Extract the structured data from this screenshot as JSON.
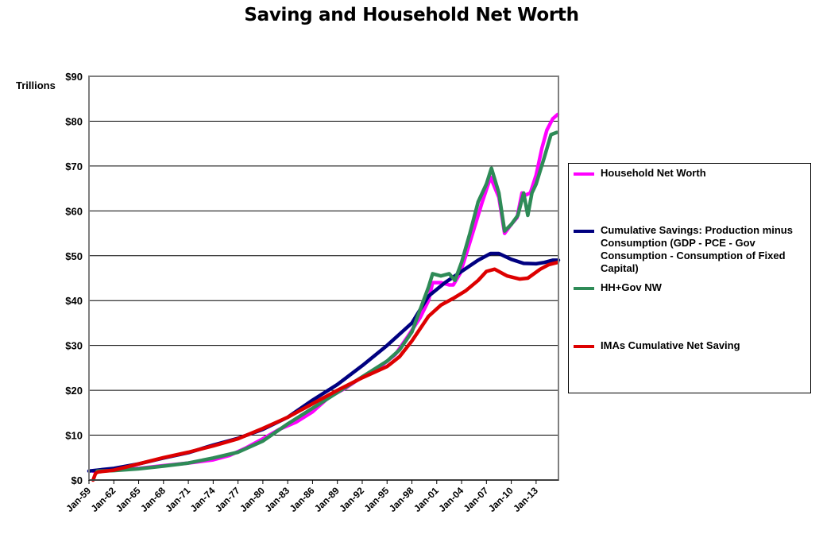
{
  "chart_data": {
    "type": "line",
    "title": "Saving and Household Net Worth",
    "ylabel": "Trillions",
    "xlabel": "",
    "ylim": [
      0,
      90
    ],
    "xlim": [
      1959,
      2015.7
    ],
    "y_tick_labels": [
      "$0",
      "$10",
      "$20",
      "$30",
      "$40",
      "$50",
      "$60",
      "$70",
      "$80",
      "$90"
    ],
    "y_tick_values": [
      0,
      10,
      20,
      30,
      40,
      50,
      60,
      70,
      80,
      90
    ],
    "x_tick_labels": [
      "Jan-59",
      "Jan-62",
      "Jan-65",
      "Jan-68",
      "Jan-71",
      "Jan-74",
      "Jan-77",
      "Jan-80",
      "Jan-83",
      "Jan-86",
      "Jan-89",
      "Jan-92",
      "Jan-95",
      "Jan-98",
      "Jan-01",
      "Jan-04",
      "Jan-07",
      "Jan-10",
      "Jan-13"
    ],
    "x_tick_values": [
      1959,
      1962,
      1965,
      1968,
      1971,
      1974,
      1977,
      1980,
      1983,
      1986,
      1989,
      1992,
      1995,
      1998,
      2001,
      2004,
      2007,
      2010,
      2013
    ],
    "grid": true,
    "legend_position": "right",
    "series": [
      {
        "name": "Household Net Worth",
        "color": "#ff00ff",
        "x": [
          1959.5,
          1962,
          1965,
          1968,
          1971,
          1974,
          1976,
          1978,
          1980,
          1982,
          1984,
          1986,
          1988,
          1990,
          1992,
          1994,
          1996,
          1997.5,
          1999,
          2000,
          2000.5,
          2001.5,
          2002.5,
          2003,
          2003.8,
          2004.5,
          2005.5,
          2006.5,
          2007.5,
          2008.5,
          2009.2,
          2010,
          2010.7,
          2011.3,
          2011.7,
          2012.3,
          2013,
          2013.7,
          2014.3,
          2015,
          2015.6
        ],
        "y": [
          2,
          2.2,
          2.6,
          3.2,
          3.8,
          4.5,
          5.5,
          7.2,
          9.2,
          11.3,
          12.9,
          15.2,
          18.5,
          20.5,
          23,
          25,
          28,
          32,
          36.2,
          40,
          44,
          44,
          43.5,
          43.5,
          46,
          50,
          56,
          62,
          67.5,
          63,
          55,
          57,
          58.5,
          64,
          63.5,
          64,
          68,
          74,
          78,
          80.5,
          81.5
        ]
      },
      {
        "name": "Cumulative Savings: Production minus Consumption (GDP - PCE - Gov Consumption - Consumption of Fixed Capital)",
        "color": "#000080",
        "x": [
          1959,
          1962,
          1965,
          1968,
          1971,
          1974,
          1977,
          1980,
          1983,
          1986,
          1989,
          1992,
          1995,
          1998,
          2000,
          2002,
          2004,
          2006,
          2007.5,
          2008.5,
          2010,
          2011.5,
          2013,
          2014,
          2015,
          2015.7
        ],
        "y": [
          2,
          2.6,
          3.6,
          4.9,
          6.1,
          7.8,
          9.3,
          11.3,
          14,
          17.8,
          21.3,
          25.5,
          30,
          35,
          41,
          44,
          46.5,
          49,
          50.5,
          50.5,
          49.2,
          48.3,
          48.2,
          48.5,
          49,
          49
        ]
      },
      {
        "name": "HH+Gov NW",
        "color": "#2e8b57",
        "x": [
          1960,
          1962,
          1965,
          1968,
          1971,
          1974,
          1977,
          1980,
          1983,
          1986,
          1989,
          1992,
          1995,
          1996.5,
          1998,
          1999,
          2000,
          2000.5,
          2001.5,
          2002.5,
          2003.2,
          2004,
          2005,
          2006,
          2007,
          2007.6,
          2008.5,
          2009.2,
          2010,
          2010.8,
          2011.5,
          2012,
          2012.5,
          2013,
          2014,
          2014.8,
          2015.5
        ],
        "y": [
          2,
          2.1,
          2.5,
          3.1,
          3.8,
          4.9,
          6.2,
          8.7,
          12.5,
          16,
          19.5,
          23,
          26.5,
          29,
          33,
          38,
          43,
          46,
          45.5,
          46,
          44.5,
          48.5,
          55,
          62,
          66,
          69.5,
          64,
          55.5,
          57,
          59,
          64,
          59,
          64,
          66,
          72,
          77,
          77.5
        ]
      },
      {
        "name": "IMAs Cumulative Net Saving",
        "color": "#dd0000",
        "x": [
          1959.5,
          1959.8,
          1960.1,
          1962,
          1965,
          1968,
          1971,
          1974,
          1977,
          1980,
          1983,
          1986,
          1989,
          1992,
          1995,
          1996.5,
          1998,
          2000,
          2001.5,
          2003,
          2004.5,
          2006,
          2007,
          2008,
          2009.5,
          2011,
          2012,
          2013.5,
          2014.5,
          2015.6
        ],
        "y": [
          0,
          1.5,
          1.8,
          2.2,
          3.6,
          5,
          6.2,
          7.6,
          9.2,
          11.5,
          14,
          17,
          20,
          22.8,
          25.3,
          27.5,
          31,
          36.5,
          39,
          40.5,
          42.2,
          44.5,
          46.5,
          47,
          45.5,
          44.8,
          45,
          47,
          48,
          48.5
        ]
      }
    ]
  }
}
